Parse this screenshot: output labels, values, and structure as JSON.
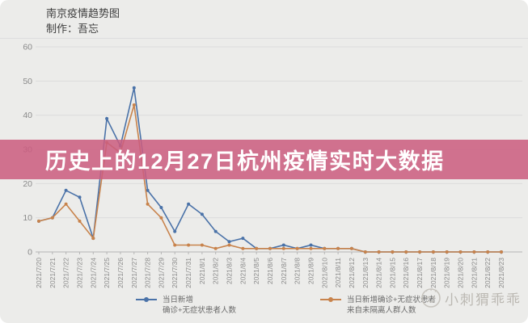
{
  "header": {
    "title": "南京疫情趋势图",
    "credit": "制作：吾忘"
  },
  "banner": {
    "text": "历史上的12月27日杭州疫情实时大数据",
    "bg": "#cb5d80",
    "text_color": "#ffffff"
  },
  "watermark": {
    "text": "小刺猬乖乖"
  },
  "chart_data": {
    "type": "line",
    "title": "南京疫情趋势图",
    "xlabel": "",
    "ylabel": "",
    "ylim": [
      0,
      60
    ],
    "yticks": [
      0,
      10,
      20,
      30,
      40,
      50,
      60
    ],
    "grid": "horizontal",
    "legend_position": "bottom",
    "x": [
      "2021/7/20",
      "2021/7/21",
      "2021/7/22",
      "2021/7/23",
      "2021/7/24",
      "2021/7/25",
      "2021/7/26",
      "2021/7/27",
      "2021/7/28",
      "2021/7/29",
      "2021/7/30",
      "2021/7/31",
      "2021/8/1",
      "2021/8/2",
      "2021/8/3",
      "2021/8/4",
      "2021/8/5",
      "2021/8/6",
      "2021/8/7",
      "2021/8/8",
      "2021/8/9",
      "2021/8/10",
      "2021/8/11",
      "2021/8/12",
      "2021/8/13",
      "2021/8/14",
      "2021/8/15",
      "2021/8/16",
      "2021/8/17",
      "2021/8/18",
      "2021/8/19",
      "2021/8/20",
      "2021/8/21",
      "2021/8/22",
      "2021/8/23"
    ],
    "series": [
      {
        "name": "当日新增 确诊+无症状患者人数",
        "label_lines": [
          "当日新增",
          "确诊+无症状患者人数"
        ],
        "color": "#4a72a8",
        "values": [
          9,
          10,
          18,
          16,
          4,
          39,
          31,
          48,
          18,
          13,
          6,
          14,
          11,
          6,
          3,
          4,
          1,
          1,
          2,
          1,
          2,
          1,
          1,
          1,
          0,
          0,
          0,
          0,
          0,
          0,
          0,
          0,
          0,
          0,
          0
        ]
      },
      {
        "name": "当日新增确诊+无症状患者 来自未隔离人群人数",
        "label_lines": [
          "当日新增确诊+无症状患者",
          "来自未隔离人群人数"
        ],
        "color": "#c8834c",
        "values": [
          9,
          10,
          14,
          9,
          4,
          32,
          29,
          43,
          14,
          10,
          2,
          2,
          2,
          1,
          2,
          1,
          1,
          1,
          1,
          1,
          1,
          1,
          1,
          1,
          0,
          0,
          0,
          0,
          0,
          0,
          0,
          0,
          0,
          0,
          0
        ]
      }
    ]
  }
}
